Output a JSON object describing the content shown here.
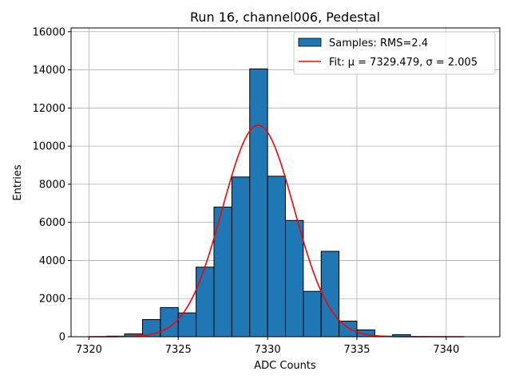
{
  "chart_data": {
    "type": "bar",
    "title": "Run 16, channel006, Pedestal",
    "xlabel": "ADC Counts",
    "ylabel": "Entries",
    "xlim": [
      7319,
      7343
    ],
    "ylim": [
      0,
      16200
    ],
    "xticks": [
      7320,
      7325,
      7330,
      7335,
      7340
    ],
    "yticks": [
      0,
      2000,
      4000,
      6000,
      8000,
      10000,
      12000,
      14000,
      16000
    ],
    "grid": true,
    "legend_position": "top-right",
    "bar_color": "#1f77b4",
    "fit_color": "#ff0000",
    "histogram": {
      "name": "Samples: RMS=2.4",
      "bin_width": 1,
      "bins": [
        {
          "x": 7320,
          "value": 5
        },
        {
          "x": 7321,
          "value": 30
        },
        {
          "x": 7322,
          "value": 150
        },
        {
          "x": 7323,
          "value": 900
        },
        {
          "x": 7324,
          "value": 1530
        },
        {
          "x": 7325,
          "value": 1250
        },
        {
          "x": 7326,
          "value": 3650
        },
        {
          "x": 7327,
          "value": 6800
        },
        {
          "x": 7328,
          "value": 8380
        },
        {
          "x": 7329,
          "value": 14050
        },
        {
          "x": 7330,
          "value": 8420
        },
        {
          "x": 7331,
          "value": 6100
        },
        {
          "x": 7332,
          "value": 2380
        },
        {
          "x": 7333,
          "value": 4480
        },
        {
          "x": 7334,
          "value": 820
        },
        {
          "x": 7335,
          "value": 360
        },
        {
          "x": 7336,
          "value": 30
        },
        {
          "x": 7337,
          "value": 110
        },
        {
          "x": 7338,
          "value": 10
        },
        {
          "x": 7339,
          "value": 5
        },
        {
          "x": 7340,
          "value": 2
        }
      ]
    },
    "fit": {
      "name": "Fit: μ = 7329.479, σ = 2.005",
      "type": "gaussian",
      "mu": 7329.479,
      "sigma": 2.005,
      "amplitude": 11100,
      "x_range": [
        7320,
        7341
      ]
    }
  }
}
